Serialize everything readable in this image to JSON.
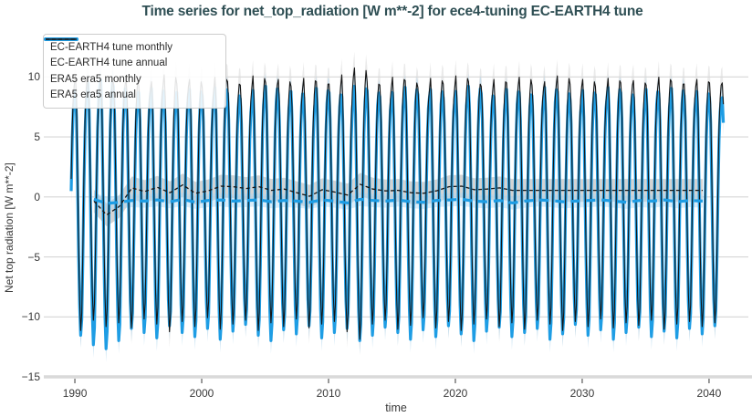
{
  "header": {
    "title_color": "#2f4f54"
  },
  "chart_data": {
    "type": "line",
    "title": "Time series for net_top_radiation [W m**-2] for ece4-tuning EC-EARTH4 tune",
    "xlabel": "time",
    "ylabel": "Net top radiation [W m**-2]",
    "xlim": [
      1987.55,
      2043.1
    ],
    "ylim": [
      -15.3,
      13.9
    ],
    "x_ticks": [
      1990,
      2000,
      2010,
      2020,
      2030,
      2040
    ],
    "y_ticks": [
      10,
      5,
      0,
      -5,
      -10,
      -15
    ],
    "grid": "horizontal gridlines only, light gray, white background",
    "legend_position": "top-left",
    "legend": [
      {
        "id": "ec_monthly",
        "label": "EC-EARTH4 tune monthly",
        "style": "thick solid",
        "color": "#1e9de4"
      },
      {
        "id": "ec_annual",
        "label": "EC-EARTH4 tune annual",
        "style": "thick dashed",
        "color": "#1e9de4"
      },
      {
        "id": "era5_monthly",
        "label": "ERA5 era5 monthly",
        "style": "thin solid",
        "color": "#1a1a1a"
      },
      {
        "id": "era5_annual",
        "label": "ERA5 era5 annual",
        "style": "thin dashed",
        "color": "#1a1a1a"
      }
    ],
    "colors": {
      "ec_line": "#1e9de4",
      "era5_line": "#161616",
      "ec_band": "#a9d3ee",
      "era5_band": "#d8d8d8",
      "annual_band_gray": "#c6c6c6",
      "annual_band_blue": "#aed4ef",
      "grid": "#d6d6d6",
      "spine": "#d9d9d9",
      "tick": "#6e6e6e",
      "text": "#393939",
      "title": "#2f4f54"
    },
    "monthly": {
      "units": "W m**-2",
      "start": [
        1989,
        8
      ],
      "end": [
        2041,
        1
      ],
      "climatology": {
        "ec": [
          8.7,
          6.5,
          1.5,
          -4.5,
          -9.0,
          -11.3,
          -10.0,
          -5.5,
          0.5,
          5.0,
          7.5,
          8.5
        ],
        "era5": [
          9.6,
          7.8,
          2.5,
          -3.5,
          -8.2,
          -10.6,
          -9.2,
          -4.6,
          1.5,
          6.0,
          8.3,
          9.4
        ]
      },
      "amplitude_by_year": {
        "start_year": 1989,
        "ec": [
          0.98,
          1.02,
          1.09,
          1.12,
          1.06,
          0.97,
          1.0,
          1.04,
          0.95,
          1.0,
          1.03,
          0.97,
          1.05,
          0.99,
          0.94,
          1.02,
          1.06,
          0.98,
          1.01,
          0.95,
          1.04,
          1.0,
          0.97,
          1.06,
          1.02,
          0.96,
          1.0,
          1.05,
          0.98,
          1.03,
          0.95,
          1.01,
          1.06,
          0.99,
          0.96,
          1.03,
          1.0,
          0.97,
          1.05,
          1.01,
          0.94,
          1.02,
          0.98,
          1.05,
          1.0,
          0.96,
          1.03,
          0.99,
          1.04,
          0.97,
          1.01,
          0.95
        ],
        "era5": [
          1.0,
          1.05,
          0.97,
          1.02,
          0.99,
          1.03,
          0.96,
          1.0,
          1.06,
          0.98,
          1.02,
          0.95,
          1.04,
          1.0,
          0.97,
          1.05,
          0.99,
          1.02,
          0.96,
          1.03,
          1.0,
          0.98,
          1.06,
          1.12,
          1.0,
          0.97,
          1.04,
          1.01,
          0.95,
          1.03,
          0.98,
          1.05,
          1.0,
          0.96,
          1.02,
          0.99,
          1.04,
          0.97,
          1.0,
          1.05,
          0.98,
          1.02,
          0.96,
          1.03,
          0.99,
          1.01,
          0.97,
          1.04,
          1.0,
          0.98,
          1.02,
          0.99
        ]
      },
      "band_halfwidth": {
        "ec": 1.1,
        "era5": 1.35
      }
    },
    "annual": {
      "start_year": 1991,
      "plotted_at": "mid-year",
      "ec": [
        -0.2,
        -0.55,
        -0.45,
        -0.3,
        -0.35,
        -0.25,
        -0.4,
        -0.2,
        -0.45,
        -0.3,
        -0.25,
        -0.35,
        -0.3,
        -0.25,
        -0.4,
        -0.3,
        -0.35,
        -0.45,
        -0.25,
        -0.35,
        -0.5,
        -0.2,
        -0.3,
        -0.35,
        -0.25,
        -0.4,
        -0.45,
        -0.3,
        -0.25,
        -0.2,
        -0.35,
        -0.4,
        -0.3,
        -0.5,
        -0.35,
        -0.25,
        -0.3,
        -0.4,
        -0.35,
        -0.3,
        -0.25,
        -0.35,
        -0.45,
        -0.3,
        -0.35,
        -0.25,
        -0.4,
        -0.3,
        -0.35
      ],
      "era5": [
        -0.35,
        -1.5,
        -0.8,
        0.75,
        0.45,
        0.8,
        0.35,
        1.0,
        0.3,
        0.5,
        0.9,
        0.85,
        0.7,
        0.85,
        0.55,
        0.65,
        0.35,
        0.05,
        0.6,
        0.4,
        0.15,
        1.05,
        0.65,
        0.5,
        0.55,
        0.35,
        0.3,
        0.5,
        0.85,
        0.9,
        0.6,
        0.65,
        0.75,
        0.55,
        0.55,
        0.55,
        0.55,
        0.55,
        0.55,
        0.55,
        0.55,
        0.55,
        0.55,
        0.55,
        0.55,
        0.55,
        0.55,
        0.55,
        0.55
      ],
      "band_halfwidth": {
        "ec": 0.55,
        "era5": 0.95
      }
    }
  }
}
